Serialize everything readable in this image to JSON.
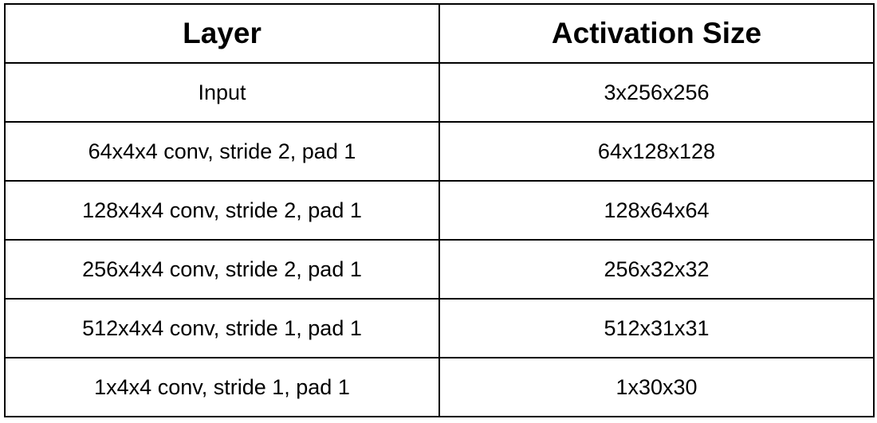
{
  "table": {
    "headers": [
      "Layer",
      "Activation Size"
    ],
    "rows": [
      [
        "Input",
        "3x256x256"
      ],
      [
        "64x4x4 conv, stride 2, pad 1",
        "64x128x128"
      ],
      [
        "128x4x4 conv, stride 2, pad 1",
        "128x64x64"
      ],
      [
        "256x4x4 conv, stride 2, pad 1",
        "256x32x32"
      ],
      [
        "512x4x4 conv, stride 1, pad 1",
        "512x31x31"
      ],
      [
        "1x4x4 conv, stride 1, pad 1",
        "1x30x30"
      ]
    ]
  }
}
